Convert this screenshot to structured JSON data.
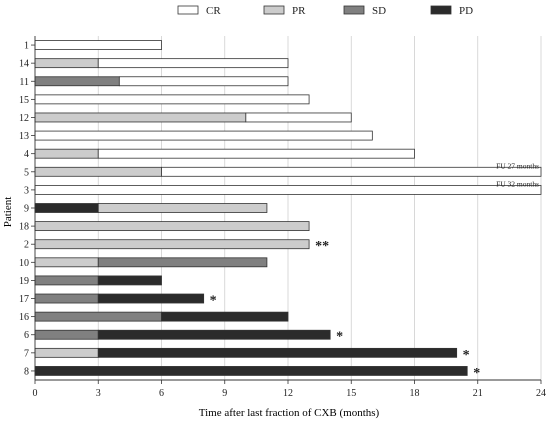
{
  "chart_data": {
    "type": "bar",
    "orientation": "horizontal",
    "stacked": true,
    "title": "",
    "xlabel": "Time after last fraction of CXB (months)",
    "ylabel": "Patient",
    "xlim": [
      0,
      24
    ],
    "xticks": [
      "0",
      "3",
      "6",
      "9",
      "12",
      "15",
      "18",
      "21",
      "24"
    ],
    "grid": "vertical",
    "legend_position": "top",
    "legend": [
      {
        "key": "CR",
        "label": "CR",
        "color": "#ffffff"
      },
      {
        "key": "PR",
        "label": "PR",
        "color": "#cccccc"
      },
      {
        "key": "SD",
        "label": "SD",
        "color": "#808080"
      },
      {
        "key": "PD",
        "label": "PD",
        "color": "#2b2b2b"
      }
    ],
    "patients": [
      {
        "id": "1",
        "segments": [
          {
            "status": "CR",
            "start": 0,
            "end": 6
          }
        ]
      },
      {
        "id": "14",
        "segments": [
          {
            "status": "PR",
            "start": 0,
            "end": 3
          },
          {
            "status": "CR",
            "start": 3,
            "end": 12
          }
        ]
      },
      {
        "id": "11",
        "segments": [
          {
            "status": "SD",
            "start": 0,
            "end": 4
          },
          {
            "status": "CR",
            "start": 4,
            "end": 12
          }
        ]
      },
      {
        "id": "15",
        "segments": [
          {
            "status": "CR",
            "start": 0,
            "end": 13
          }
        ]
      },
      {
        "id": "12",
        "segments": [
          {
            "status": "PR",
            "start": 0,
            "end": 10
          },
          {
            "status": "CR",
            "start": 10,
            "end": 15
          }
        ]
      },
      {
        "id": "13",
        "segments": [
          {
            "status": "CR",
            "start": 0,
            "end": 16
          }
        ]
      },
      {
        "id": "4",
        "segments": [
          {
            "status": "PR",
            "start": 0,
            "end": 3
          },
          {
            "status": "CR",
            "start": 3,
            "end": 18
          }
        ]
      },
      {
        "id": "5",
        "segments": [
          {
            "status": "PR",
            "start": 0,
            "end": 6
          },
          {
            "status": "CR",
            "start": 6,
            "end": 24
          }
        ],
        "open_end": true,
        "note": "FU 27 months"
      },
      {
        "id": "3",
        "segments": [
          {
            "status": "CR",
            "start": 0,
            "end": 24
          }
        ],
        "open_end": true,
        "note": "FU 32 months"
      },
      {
        "id": "9",
        "segments": [
          {
            "status": "PD",
            "start": 0,
            "end": 3
          },
          {
            "status": "PR",
            "start": 3,
            "end": 11
          }
        ]
      },
      {
        "id": "18",
        "segments": [
          {
            "status": "PR",
            "start": 0,
            "end": 13
          }
        ]
      },
      {
        "id": "2",
        "segments": [
          {
            "status": "PR",
            "start": 0,
            "end": 13
          }
        ],
        "marker": "**"
      },
      {
        "id": "10",
        "segments": [
          {
            "status": "PR",
            "start": 0,
            "end": 3
          },
          {
            "status": "SD",
            "start": 3,
            "end": 11
          }
        ]
      },
      {
        "id": "19",
        "segments": [
          {
            "status": "SD",
            "start": 0,
            "end": 3
          },
          {
            "status": "PD",
            "start": 3,
            "end": 6
          }
        ]
      },
      {
        "id": "17",
        "segments": [
          {
            "status": "SD",
            "start": 0,
            "end": 3
          },
          {
            "status": "PD",
            "start": 3,
            "end": 8
          }
        ],
        "marker": "*"
      },
      {
        "id": "16",
        "segments": [
          {
            "status": "SD",
            "start": 0,
            "end": 6
          },
          {
            "status": "PD",
            "start": 6,
            "end": 12
          }
        ]
      },
      {
        "id": "6",
        "segments": [
          {
            "status": "SD",
            "start": 0,
            "end": 3
          },
          {
            "status": "PD",
            "start": 3,
            "end": 14
          }
        ],
        "marker": "*"
      },
      {
        "id": "7",
        "segments": [
          {
            "status": "PR",
            "start": 0,
            "end": 3
          },
          {
            "status": "PD",
            "start": 3,
            "end": 20
          }
        ],
        "marker": "*"
      },
      {
        "id": "8",
        "segments": [
          {
            "status": "PD",
            "start": 0,
            "end": 20.5
          }
        ],
        "marker": "*"
      }
    ]
  }
}
